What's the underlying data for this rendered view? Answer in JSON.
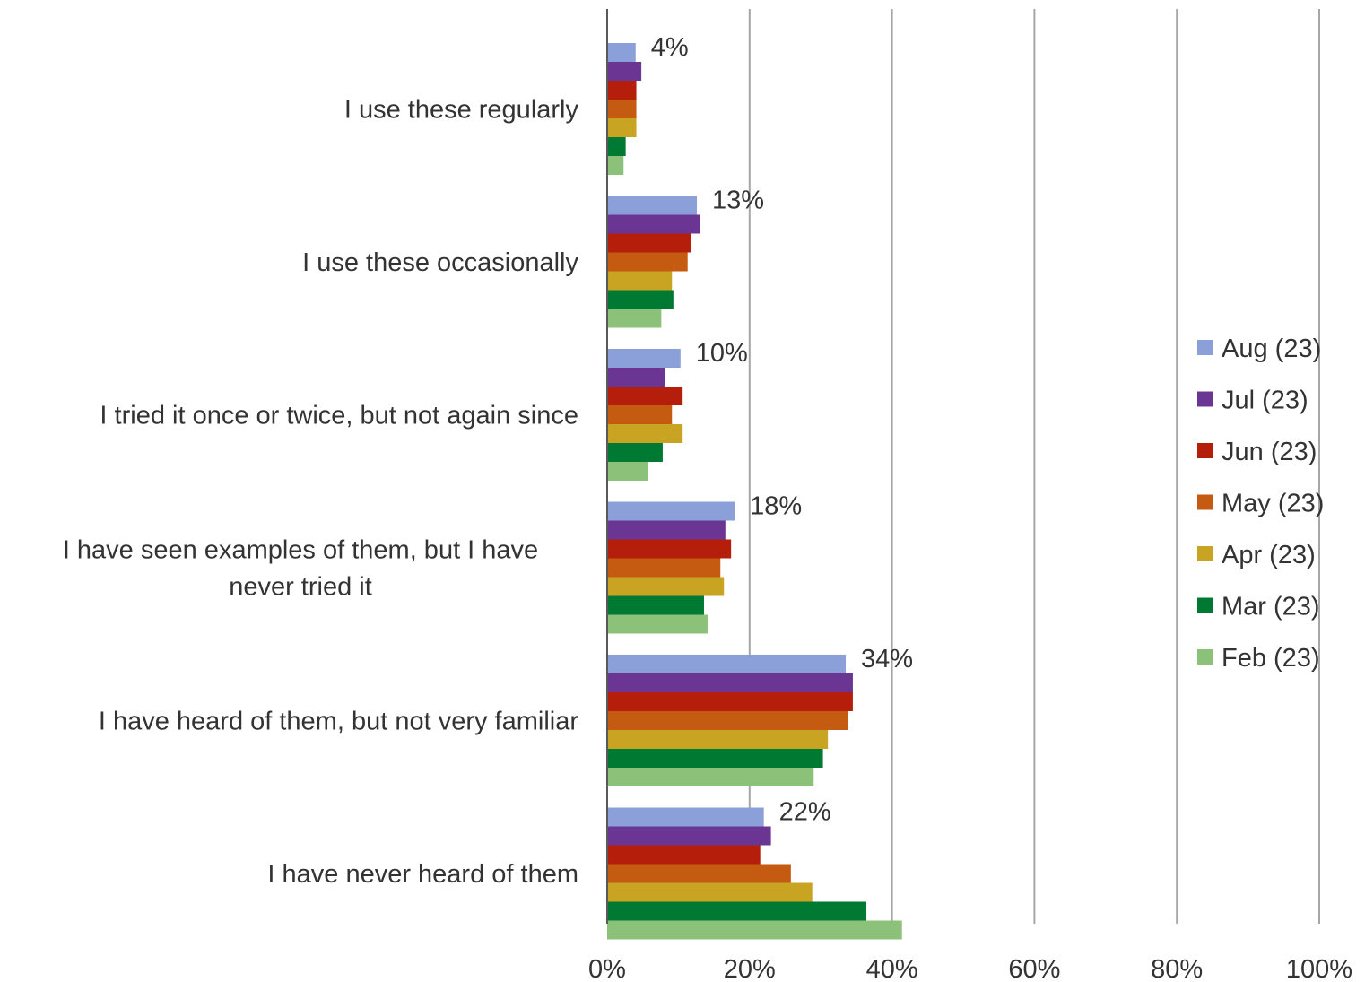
{
  "chart_data": {
    "type": "bar",
    "orientation": "horizontal",
    "title": "",
    "xlabel": "",
    "ylabel": "",
    "xlim": [
      0,
      100
    ],
    "x_ticks": [
      "0%",
      "20%",
      "40%",
      "60%",
      "80%",
      "100%"
    ],
    "grid": "vertical",
    "legend_position": "right",
    "categories": [
      "I use these regularly",
      "I use these occasionally",
      "I tried it once or twice, but not again since",
      "I have seen examples of them, but I have never tried it",
      "I have heard of them, but not very familiar",
      "I have never heard of them"
    ],
    "category_lines": [
      [
        "I use these regularly"
      ],
      [
        "I use these occasionally"
      ],
      [
        "I tried it once or twice, but not again since"
      ],
      [
        "I have seen examples of them, but I have",
        "never tried it"
      ],
      [
        "I have heard of them, but not very familiar"
      ],
      [
        "I have never heard of them"
      ]
    ],
    "series": [
      {
        "name": "Aug (23)",
        "color": "#8ba0d8",
        "values": [
          4,
          12.6,
          10.3,
          17.9,
          33.5,
          22
        ]
      },
      {
        "name": "Jul (23)",
        "color": "#6b3594",
        "values": [
          4.8,
          13.1,
          8.1,
          16.6,
          34.5,
          23
        ]
      },
      {
        "name": "Jun (23)",
        "color": "#b51e0b",
        "values": [
          4.1,
          11.8,
          10.6,
          17.4,
          34.5,
          21.5
        ]
      },
      {
        "name": "May (23)",
        "color": "#c55a11",
        "values": [
          4.1,
          11.3,
          9.1,
          15.9,
          33.8,
          25.8
        ]
      },
      {
        "name": "Apr (23)",
        "color": "#c9a422",
        "values": [
          4.1,
          9.1,
          10.6,
          16.4,
          31,
          28.8
        ]
      },
      {
        "name": "Mar (23)",
        "color": "#007a33",
        "values": [
          2.6,
          9.3,
          7.8,
          13.6,
          30.3,
          36.4
        ]
      },
      {
        "name": "Feb (23)",
        "color": "#8cc17a",
        "values": [
          2.3,
          7.6,
          5.8,
          14.1,
          29,
          41.4
        ]
      }
    ],
    "data_labels": [
      "4%",
      "13%",
      "10%",
      "18%",
      "34%",
      "22%"
    ]
  }
}
